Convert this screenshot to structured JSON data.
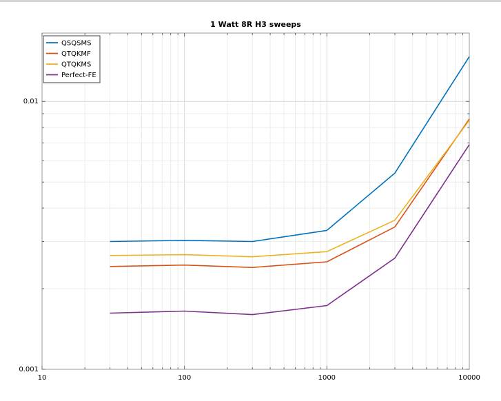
{
  "chart_data": {
    "type": "line",
    "title": "1 Watt 8R H3 sweeps",
    "xscale": "log",
    "yscale": "log",
    "xlim": [
      10,
      10000
    ],
    "ylim": [
      0.001,
      0.018
    ],
    "xticks": [
      "10",
      "100",
      "1000",
      "10000"
    ],
    "yticks": [
      "0.001",
      "0.01"
    ],
    "grid": true,
    "legend_position": "top-left",
    "x": [
      30,
      100,
      300,
      1000,
      3000,
      10000
    ],
    "series": [
      {
        "name": "QSQSMS",
        "color": "#0072bd",
        "values": [
          0.003,
          0.00303,
          0.003,
          0.0033,
          0.0054,
          0.0147
        ]
      },
      {
        "name": "QTQKMF",
        "color": "#d95319",
        "values": [
          0.00242,
          0.00245,
          0.0024,
          0.00252,
          0.0034,
          0.0086
        ]
      },
      {
        "name": "QTQKMS",
        "color": "#edb120",
        "values": [
          0.00266,
          0.00268,
          0.00263,
          0.00275,
          0.0036,
          0.0085
        ]
      },
      {
        "name": "Perfect-FE",
        "color": "#7e2f8e",
        "values": [
          0.00162,
          0.00165,
          0.0016,
          0.00173,
          0.0026,
          0.0069
        ]
      }
    ]
  }
}
